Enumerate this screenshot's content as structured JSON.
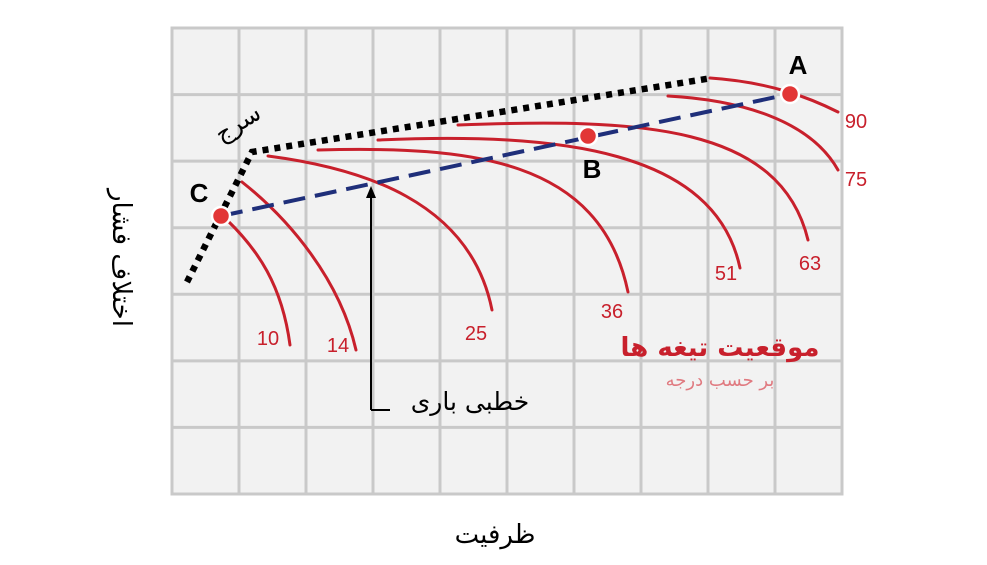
{
  "chart_data": {
    "type": "line",
    "ylabel": "اختلاف فشار",
    "xlabel": "ظرفیت",
    "surge_label": "سرج",
    "load_line_label": "خطبی باری",
    "legend_title": "موقعیت تیغه ها",
    "legend_subtitle": "بر حسب درجه",
    "grid": true,
    "point_labels": [
      "A",
      "B",
      "C"
    ],
    "series_labels": [
      "10",
      "14",
      "25",
      "36",
      "51",
      "63",
      "75",
      "90"
    ],
    "colors": {
      "curves": "#c8202c",
      "surge_line": "#000000",
      "load_line": "#1f2f7a",
      "grid": "#c9c9c9",
      "grid_bg": "#f2f2f2",
      "point_fill": "#e23636",
      "legend_subtitle": "#e07a80"
    }
  }
}
